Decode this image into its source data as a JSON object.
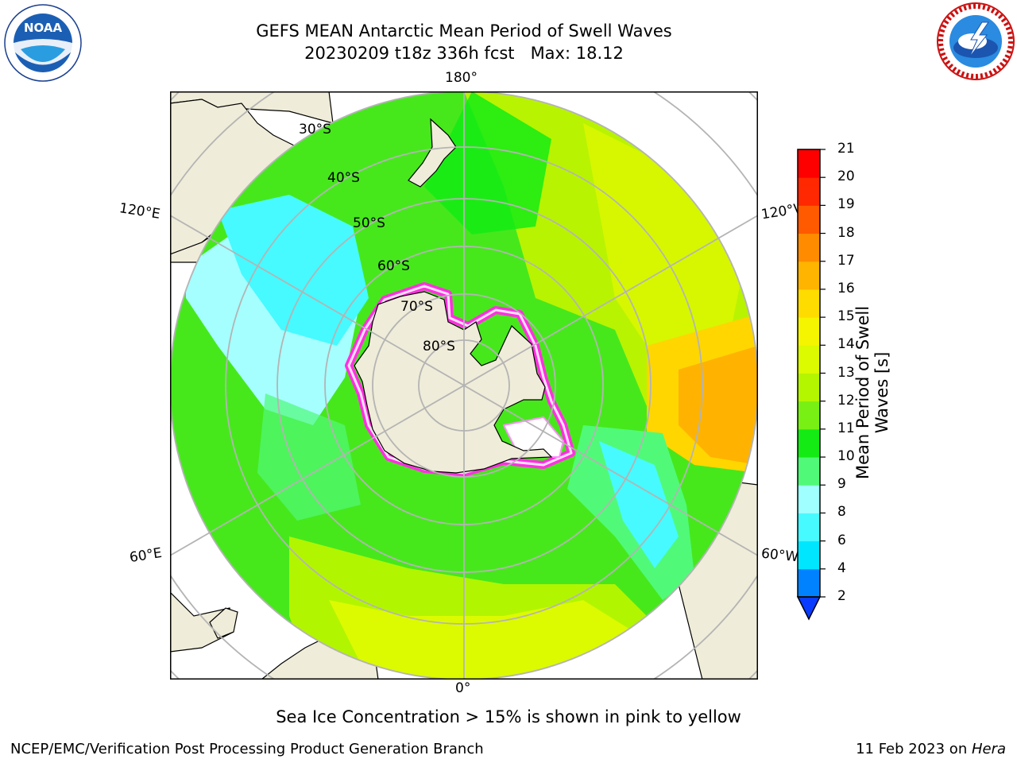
{
  "header": {
    "title_line1": "GEFS MEAN Antarctic Mean Period of Swell Waves",
    "title_line2": "20230209 t18z 336h fcst   Max: 18.12"
  },
  "logos": {
    "left": "NOAA",
    "left_ring_text": "NATIONAL OCEANIC AND ATMOSPHERIC ADMINISTRATION · U.S. DEPARTMENT OF COMMERCE",
    "right_ring_text": "NATIONAL WEATHER SERVICE"
  },
  "map": {
    "longitude_labels": {
      "top": "180°",
      "bottom": "0°",
      "upper_left": "120°E",
      "upper_right": "120°W",
      "lower_left": "60°E",
      "lower_right": "60°W"
    },
    "latitude_labels": [
      "30°S",
      "40°S",
      "50°S",
      "60°S",
      "70°S",
      "80°S"
    ],
    "colors": {
      "land": "#efecd9",
      "grid": "#b4b4b4"
    }
  },
  "colorbar": {
    "label": "Mean Period of Swell Waves [s]",
    "ticks": [
      "2",
      "4",
      "6",
      "8",
      "9",
      "10",
      "11",
      "12",
      "13",
      "14",
      "15",
      "16",
      "17",
      "18",
      "19",
      "20",
      "21"
    ],
    "colors": [
      "#0a3cff",
      "#0082ff",
      "#00e6ff",
      "#46faff",
      "#a0ffff",
      "#50fa78",
      "#14eb14",
      "#78f014",
      "#b4f500",
      "#dcfa00",
      "#f5f500",
      "#ffdc00",
      "#ffb400",
      "#ff8c00",
      "#ff5a00",
      "#ff2800",
      "#ff0000"
    ]
  },
  "caption": "Sea Ice Concentration > 15% is shown in pink to yellow",
  "footer": {
    "left": "NCEP/EMC/Verification Post Processing Product Generation Branch",
    "right_prefix": "11 Feb 2023 on ",
    "right_host": "Hera"
  }
}
